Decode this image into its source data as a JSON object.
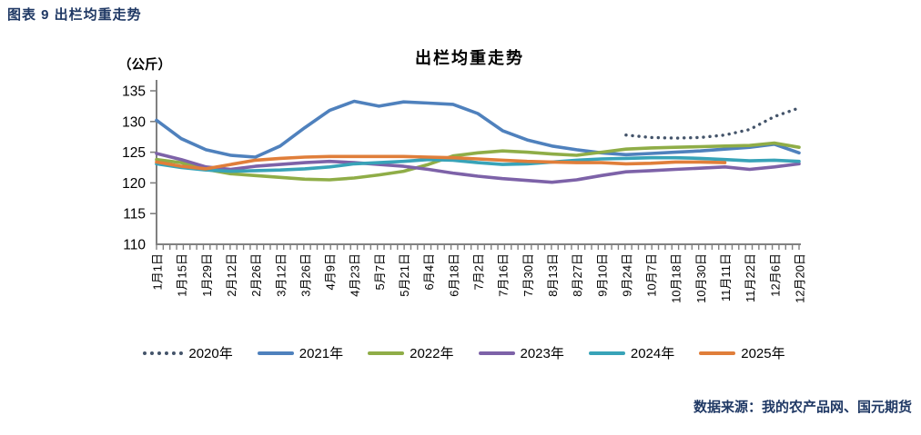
{
  "header": {
    "title": "图表 9 出栏均重走势"
  },
  "footer": {
    "source": "数据来源：我的农产品网、国元期货"
  },
  "chart_data": {
    "type": "line",
    "title": "出栏均重走势",
    "unit_label": "（公斤）",
    "ylabel": "公斤",
    "ylim": [
      110,
      135
    ],
    "yticks": [
      110,
      115,
      120,
      125,
      130,
      135
    ],
    "grid": false,
    "legend_position": "bottom",
    "axis_color": "#808080",
    "categories": [
      "1月1日",
      "1月15日",
      "1月29日",
      "2月12日",
      "2月26日",
      "3月12日",
      "3月26日",
      "4月9日",
      "4月23日",
      "5月7日",
      "5月21日",
      "6月4日",
      "6月18日",
      "7月2日",
      "7月16日",
      "7月30日",
      "8月13日",
      "8月27日",
      "9月10日",
      "9月24日",
      "10月7日",
      "10月18日",
      "10月30日",
      "11月11日",
      "11月22日",
      "12月6日",
      "12月20日"
    ],
    "series": [
      {
        "name": "2020年",
        "color": "#44546a",
        "style": "dotted",
        "values": [
          null,
          null,
          null,
          null,
          null,
          null,
          null,
          null,
          null,
          null,
          null,
          null,
          null,
          null,
          null,
          null,
          null,
          null,
          null,
          127.8,
          127.4,
          127.3,
          127.4,
          127.8,
          128.7,
          130.8,
          132.2
        ]
      },
      {
        "name": "2021年",
        "color": "#4f81bd",
        "style": "solid",
        "values": [
          130.2,
          127.2,
          125.4,
          124.5,
          124.2,
          126.0,
          129.0,
          131.8,
          133.3,
          132.5,
          133.2,
          133.0,
          132.8,
          131.3,
          128.5,
          127.0,
          126.0,
          125.4,
          124.9,
          124.6,
          124.8,
          125.0,
          125.2,
          125.5,
          125.8,
          126.3,
          124.9
        ]
      },
      {
        "name": "2022年",
        "color": "#8fad47",
        "style": "solid",
        "values": [
          123.8,
          123.3,
          122.2,
          121.5,
          121.2,
          120.9,
          120.6,
          120.5,
          120.8,
          121.3,
          121.9,
          123.0,
          124.4,
          124.9,
          125.2,
          125.0,
          124.7,
          124.5,
          125.0,
          125.5,
          125.7,
          125.8,
          125.9,
          126.0,
          126.1,
          126.5,
          125.8
        ]
      },
      {
        "name": "2023年",
        "color": "#7d62a8",
        "style": "solid",
        "values": [
          124.8,
          123.8,
          122.6,
          122.2,
          122.7,
          123.0,
          123.3,
          123.5,
          123.3,
          123.0,
          122.7,
          122.2,
          121.6,
          121.1,
          120.7,
          120.4,
          120.1,
          120.5,
          121.2,
          121.8,
          122.0,
          122.2,
          122.4,
          122.6,
          122.2,
          122.6,
          123.1
        ]
      },
      {
        "name": "2024年",
        "color": "#38a3b8",
        "style": "solid",
        "values": [
          123.1,
          122.5,
          122.1,
          121.9,
          122.0,
          122.1,
          122.3,
          122.6,
          123.1,
          123.3,
          123.5,
          123.8,
          123.7,
          123.3,
          123.0,
          123.1,
          123.4,
          123.7,
          123.9,
          124.0,
          124.1,
          124.1,
          124.0,
          123.8,
          123.6,
          123.7,
          123.5
        ]
      },
      {
        "name": "2025年",
        "color": "#e07e3a",
        "style": "solid",
        "values": [
          123.4,
          122.7,
          122.3,
          123.0,
          123.7,
          124.0,
          124.2,
          124.3,
          124.3,
          124.3,
          124.3,
          124.2,
          124.1,
          123.9,
          123.7,
          123.5,
          123.4,
          123.3,
          123.3,
          123.1,
          123.2,
          123.4,
          123.4,
          123.3,
          null,
          null,
          null
        ]
      }
    ]
  }
}
